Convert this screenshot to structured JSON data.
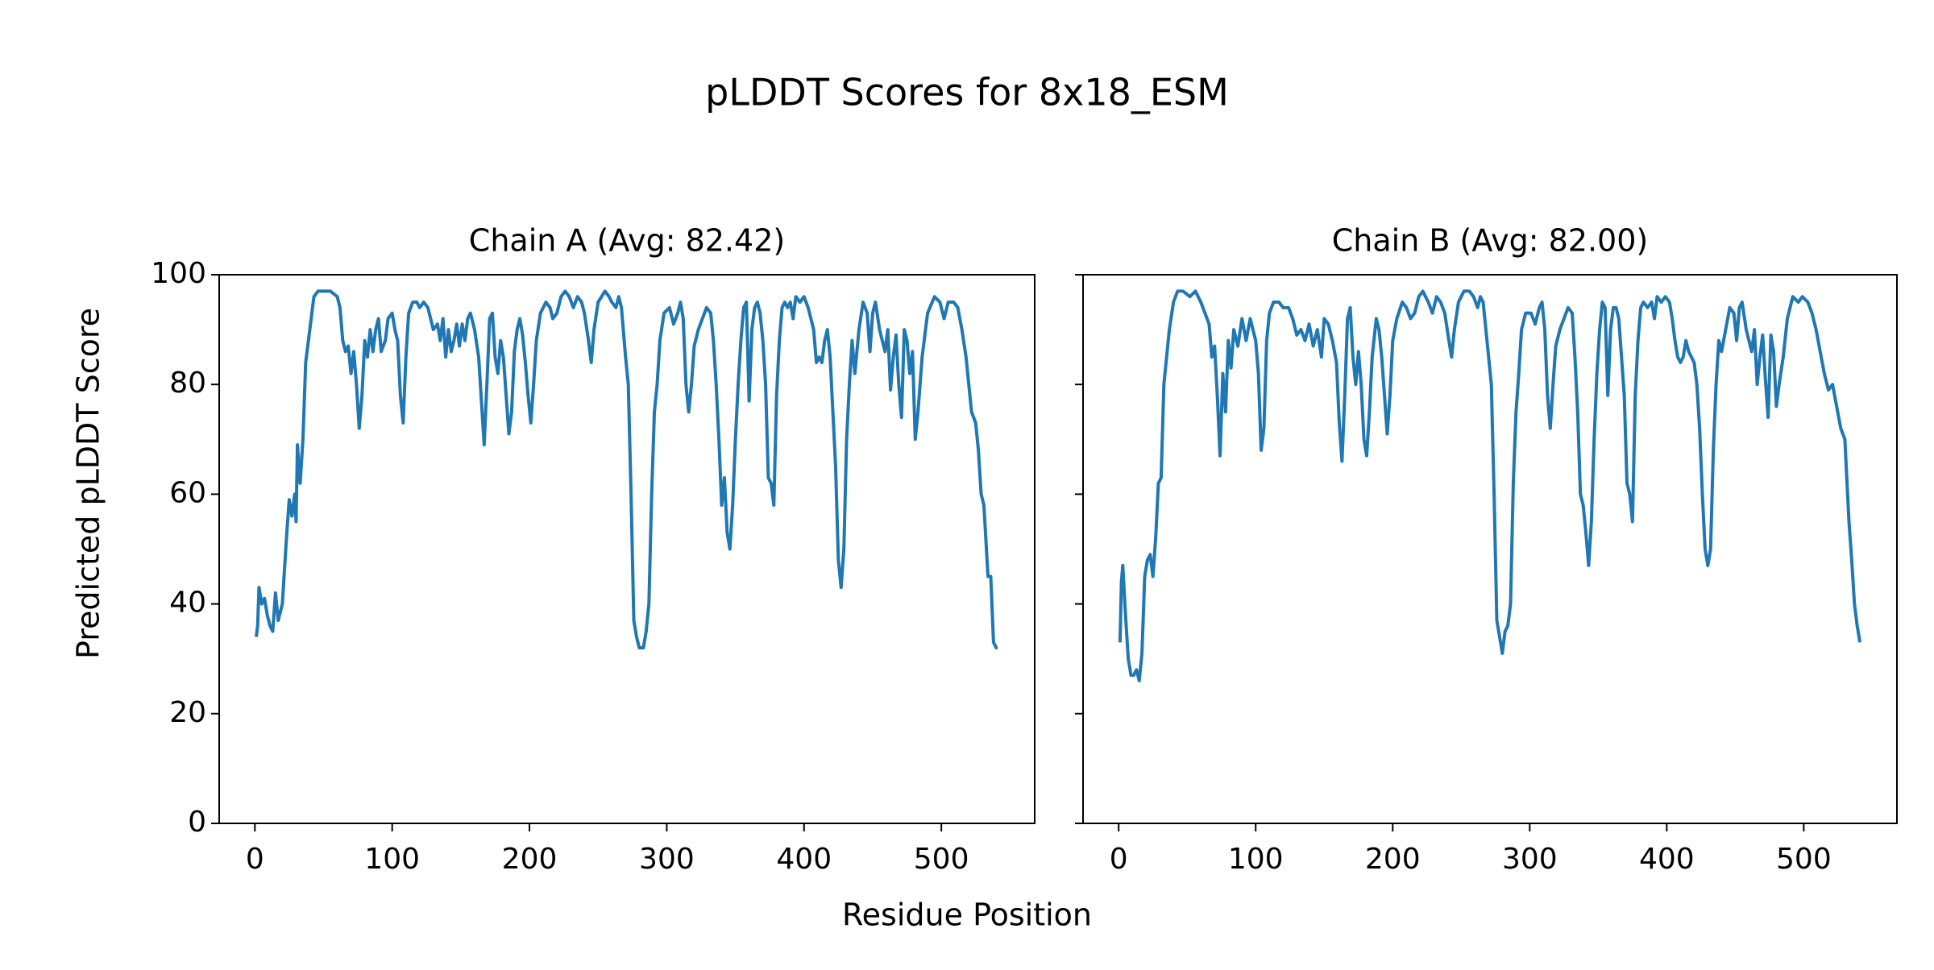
{
  "title": "pLDDT Scores for 8x18_ESM",
  "xlabel": "Residue Position",
  "ylabel": "Predicted pLDDT Score",
  "chart_data": [
    {
      "type": "line",
      "title": "Chain A (Avg: 82.42)",
      "color": "#1f77b4",
      "xlim": [
        -26,
        568
      ],
      "ylim": [
        0,
        100
      ],
      "xticks": [
        0,
        100,
        200,
        300,
        400,
        500
      ],
      "yticks": [
        0,
        20,
        40,
        60,
        80,
        100
      ],
      "show_ytick_labels": true,
      "x": [
        1,
        2,
        3,
        5,
        7,
        9,
        11,
        13,
        15,
        17,
        20,
        23,
        25,
        27,
        29,
        30,
        31,
        33,
        35,
        37,
        40,
        43,
        46,
        50,
        55,
        60,
        62,
        64,
        66,
        68,
        70,
        72,
        74,
        76,
        78,
        80,
        82,
        84,
        86,
        88,
        90,
        92,
        95,
        97,
        100,
        102,
        104,
        106,
        108,
        110,
        112,
        115,
        118,
        120,
        123,
        126,
        128,
        130,
        133,
        135,
        137,
        139,
        141,
        143,
        145,
        147,
        149,
        151,
        153,
        155,
        157,
        160,
        163,
        165,
        167,
        169,
        171,
        173,
        175,
        177,
        179,
        181,
        183,
        185,
        187,
        189,
        191,
        193,
        195,
        197,
        199,
        201,
        203,
        205,
        208,
        212,
        215,
        217,
        220,
        223,
        226,
        229,
        232,
        235,
        238,
        240,
        243,
        245,
        247,
        250,
        255,
        258,
        260,
        263,
        265,
        267,
        270,
        272,
        274,
        276,
        278,
        280,
        283,
        285,
        287,
        289,
        291,
        293,
        295,
        298,
        302,
        305,
        308,
        310,
        312,
        314,
        316,
        318,
        320,
        323,
        326,
        329,
        332,
        334,
        336,
        338,
        340,
        342,
        344,
        346,
        348,
        350,
        352,
        354,
        356,
        358,
        360,
        362,
        364,
        366,
        368,
        370,
        372,
        374,
        376,
        378,
        380,
        382,
        384,
        386,
        388,
        390,
        392,
        394,
        397,
        400,
        403,
        405,
        407,
        409,
        411,
        413,
        415,
        417,
        419,
        421,
        423,
        425,
        427,
        429,
        431,
        433,
        435,
        437,
        440,
        443,
        446,
        448,
        450,
        452,
        455,
        457,
        459,
        461,
        463,
        465,
        467,
        469,
        471,
        473,
        475,
        477,
        479,
        481,
        483,
        486,
        490,
        495,
        499,
        502,
        505,
        509,
        512,
        515,
        518,
        520,
        522,
        525,
        527,
        529,
        531,
        534,
        536,
        538,
        540,
        541
      ],
      "values": [
        34,
        36,
        43,
        40,
        41,
        38,
        36,
        35,
        42,
        37,
        40,
        52,
        59,
        56,
        60,
        55,
        69,
        62,
        70,
        84,
        90,
        96,
        97,
        97,
        97,
        96,
        94,
        88,
        86,
        87,
        82,
        86,
        80,
        72,
        78,
        88,
        85,
        90,
        86,
        90,
        92,
        86,
        88,
        92,
        93,
        90,
        88,
        78,
        73,
        85,
        93,
        95,
        95,
        94,
        95,
        94,
        92,
        90,
        91,
        88,
        92,
        85,
        90,
        86,
        88,
        91,
        87,
        91,
        88,
        92,
        93,
        90,
        85,
        77,
        69,
        80,
        92,
        93,
        85,
        82,
        88,
        85,
        78,
        71,
        75,
        86,
        90,
        92,
        89,
        84,
        78,
        73,
        80,
        88,
        93,
        95,
        94,
        92,
        93,
        96,
        97,
        96,
        94,
        96,
        95,
        93,
        88,
        84,
        90,
        95,
        97,
        96,
        95,
        94,
        96,
        94,
        85,
        80,
        60,
        37,
        34,
        32,
        32,
        35,
        40,
        60,
        75,
        80,
        88,
        93,
        94,
        91,
        93,
        95,
        92,
        80,
        75,
        80,
        87,
        90,
        92,
        94,
        93,
        88,
        80,
        70,
        58,
        63,
        53,
        50,
        58,
        70,
        80,
        88,
        94,
        95,
        77,
        90,
        94,
        95,
        93,
        88,
        80,
        63,
        62,
        58,
        78,
        88,
        94,
        95,
        94,
        95,
        92,
        96,
        95,
        96,
        94,
        92,
        90,
        84,
        85,
        84,
        88,
        90,
        85,
        75,
        65,
        48,
        43,
        50,
        70,
        80,
        88,
        82,
        90,
        95,
        93,
        86,
        93,
        95,
        90,
        88,
        86,
        90,
        79,
        85,
        89,
        80,
        74,
        90,
        88,
        82,
        86,
        70,
        75,
        85,
        93,
        96,
        95,
        92,
        95,
        95,
        94,
        90,
        85,
        80,
        75,
        73,
        68,
        60,
        58,
        45,
        45,
        33,
        32,
        32
      ]
    },
    {
      "type": "line",
      "title": "Chain B (Avg: 82.00)",
      "color": "#1f77b4",
      "xlim": [
        -26,
        568
      ],
      "ylim": [
        0,
        100
      ],
      "xticks": [
        0,
        100,
        200,
        300,
        400,
        500
      ],
      "yticks": [
        0,
        20,
        40,
        60,
        80,
        100
      ],
      "show_ytick_labels": false,
      "x": [
        1,
        2,
        3,
        5,
        7,
        9,
        11,
        13,
        15,
        17,
        19,
        21,
        23,
        25,
        27,
        29,
        31,
        33,
        35,
        37,
        40,
        43,
        47,
        52,
        56,
        60,
        63,
        66,
        68,
        70,
        72,
        74,
        76,
        78,
        80,
        82,
        84,
        87,
        90,
        93,
        96,
        98,
        100,
        102,
        104,
        106,
        108,
        110,
        113,
        117,
        120,
        124,
        127,
        130,
        133,
        136,
        139,
        142,
        145,
        148,
        150,
        153,
        156,
        159,
        161,
        163,
        165,
        167,
        169,
        171,
        173,
        175,
        177,
        179,
        181,
        183,
        185,
        188,
        190,
        192,
        194,
        196,
        198,
        200,
        203,
        207,
        210,
        213,
        216,
        219,
        222,
        226,
        229,
        232,
        235,
        238,
        241,
        243,
        245,
        248,
        252,
        256,
        259,
        262,
        264,
        266,
        268,
        270,
        272,
        274,
        276,
        278,
        280,
        282,
        284,
        286,
        288,
        290,
        292,
        294,
        297,
        301,
        304,
        307,
        309,
        311,
        313,
        315,
        317,
        319,
        322,
        325,
        328,
        331,
        333,
        335,
        337,
        339,
        341,
        343,
        345,
        347,
        349,
        351,
        353,
        355,
        357,
        359,
        361,
        363,
        365,
        367,
        369,
        371,
        373,
        375,
        377,
        379,
        381,
        383,
        386,
        389,
        391,
        393,
        396,
        399,
        402,
        404,
        406,
        408,
        410,
        412,
        414,
        416,
        420,
        422,
        424,
        426,
        428,
        430,
        432,
        434,
        436,
        438,
        440,
        443,
        446,
        449,
        451,
        453,
        455,
        458,
        460,
        462,
        464,
        466,
        468,
        470,
        472,
        474,
        476,
        478,
        480,
        482,
        485,
        488,
        492,
        496,
        499,
        503,
        506,
        509,
        512,
        515,
        518,
        521,
        524,
        527,
        530,
        533,
        535,
        537,
        539,
        541
      ],
      "values": [
        33,
        44,
        47,
        38,
        30,
        27,
        27,
        28,
        26,
        31,
        45,
        48,
        49,
        45,
        52,
        62,
        63,
        80,
        85,
        90,
        95,
        97,
        97,
        96,
        97,
        95,
        93,
        91,
        85,
        87,
        78,
        67,
        82,
        75,
        88,
        83,
        90,
        87,
        92,
        88,
        92,
        90,
        88,
        82,
        68,
        72,
        88,
        93,
        95,
        95,
        94,
        94,
        92,
        89,
        90,
        88,
        91,
        87,
        90,
        85,
        92,
        91,
        88,
        84,
        73,
        66,
        78,
        92,
        94,
        85,
        80,
        86,
        80,
        70,
        67,
        75,
        85,
        92,
        90,
        85,
        78,
        71,
        78,
        88,
        92,
        95,
        94,
        92,
        93,
        96,
        97,
        95,
        93,
        96,
        95,
        93,
        88,
        85,
        90,
        95,
        97,
        97,
        96,
        94,
        96,
        95,
        90,
        85,
        80,
        60,
        37,
        34,
        31,
        35,
        36,
        40,
        62,
        75,
        82,
        90,
        93,
        93,
        91,
        94,
        95,
        90,
        78,
        72,
        80,
        87,
        90,
        92,
        94,
        93,
        85,
        75,
        60,
        58,
        53,
        47,
        55,
        70,
        82,
        90,
        95,
        94,
        78,
        90,
        94,
        94,
        92,
        85,
        78,
        62,
        60,
        55,
        78,
        88,
        94,
        95,
        94,
        95,
        92,
        96,
        95,
        96,
        95,
        92,
        88,
        85,
        84,
        85,
        88,
        86,
        84,
        80,
        72,
        60,
        50,
        47,
        50,
        68,
        80,
        88,
        86,
        90,
        94,
        93,
        88,
        94,
        95,
        90,
        88,
        86,
        90,
        80,
        85,
        89,
        81,
        74,
        89,
        86,
        76,
        80,
        85,
        92,
        96,
        95,
        96,
        95,
        93,
        90,
        86,
        82,
        79,
        80,
        76,
        72,
        70,
        55,
        48,
        40,
        36,
        33
      ]
    }
  ]
}
